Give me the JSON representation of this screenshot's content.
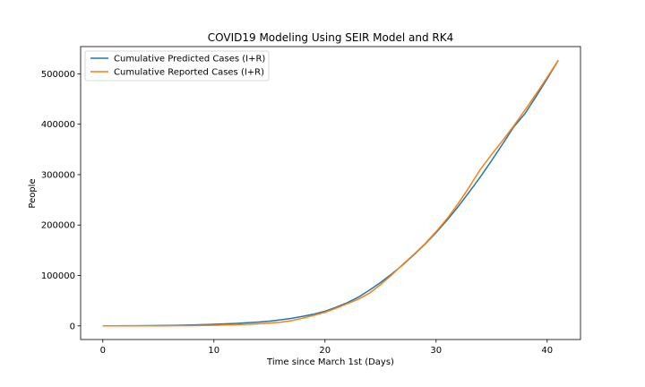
{
  "chart_data": {
    "type": "line",
    "title": "COVID19 Modeling Using SEIR Model and RK4",
    "xlabel": "Time since March 1st (Days)",
    "ylabel": "People",
    "xlim": [
      -2,
      43
    ],
    "ylim": [
      -27000,
      554000
    ],
    "xticks": [
      0,
      10,
      20,
      30,
      40
    ],
    "yticks": [
      0,
      100000,
      200000,
      300000,
      400000,
      500000
    ],
    "xtick_labels": [
      "0",
      "10",
      "20",
      "30",
      "40"
    ],
    "ytick_labels": [
      "0",
      "100000",
      "200000",
      "300000",
      "400000",
      "500000"
    ],
    "grid": false,
    "legend_position": "top-left",
    "series": [
      {
        "name": "Cumulative Predicted Cases (I+R)",
        "color": "#1f77b4",
        "x": [
          0,
          1,
          2,
          3,
          4,
          5,
          6,
          7,
          8,
          9,
          10,
          11,
          12,
          13,
          14,
          15,
          16,
          17,
          18,
          19,
          20,
          21,
          22,
          23,
          24,
          25,
          26,
          27,
          28,
          29,
          30,
          31,
          32,
          33,
          34,
          35,
          36,
          37,
          38,
          39,
          40,
          41
        ],
        "y": [
          100,
          150,
          220,
          330,
          480,
          700,
          1000,
          1400,
          1900,
          2500,
          3200,
          4000,
          5000,
          6200,
          7700,
          9500,
          12000,
          15000,
          19000,
          23500,
          29000,
          37000,
          46000,
          57000,
          71000,
          86000,
          103000,
          121000,
          141000,
          162000,
          185000,
          210000,
          237000,
          266000,
          296000,
          328000,
          361000,
          395000,
          421000,
          455000,
          490000,
          527000
        ]
      },
      {
        "name": "Cumulative Reported Cases (I+R)",
        "color": "#ff7f0e",
        "x": [
          0,
          1,
          2,
          3,
          4,
          5,
          6,
          7,
          8,
          9,
          10,
          11,
          12,
          13,
          14,
          15,
          16,
          17,
          18,
          19,
          20,
          21,
          22,
          23,
          24,
          25,
          26,
          27,
          28,
          29,
          30,
          31,
          32,
          33,
          34,
          35,
          36,
          37,
          38,
          39,
          40,
          41
        ],
        "y": [
          30,
          40,
          60,
          80,
          120,
          200,
          300,
          450,
          650,
          900,
          1300,
          1800,
          2400,
          3200,
          4200,
          5600,
          7400,
          10400,
          15300,
          21000,
          27000,
          35000,
          44000,
          53000,
          65000,
          82000,
          101000,
          122000,
          142000,
          163000,
          187000,
          213000,
          243000,
          276000,
          311000,
          340000,
          368000,
          397000,
          428000,
          460000,
          493000,
          527000
        ]
      }
    ]
  }
}
